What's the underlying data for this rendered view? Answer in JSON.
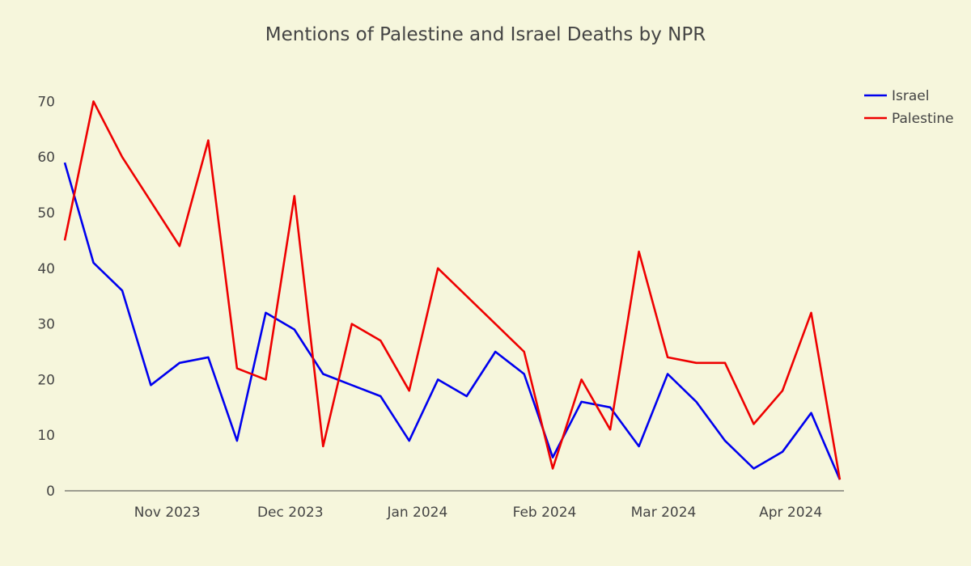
{
  "chart_data": {
    "type": "line",
    "title": "Mentions of Palestine and Israel Deaths by NPR",
    "xlabel": "",
    "ylabel": "",
    "x_axis_type": "date",
    "x_range": [
      "2023-10-07",
      "2024-04-14"
    ],
    "ylim": [
      0,
      74
    ],
    "y_ticks": [
      0,
      10,
      20,
      30,
      40,
      50,
      60,
      70
    ],
    "x_ticks": [
      {
        "date": "2023-11-01",
        "label": "Nov 2023"
      },
      {
        "date": "2023-12-01",
        "label": "Dec 2023"
      },
      {
        "date": "2024-01-01",
        "label": "Jan 2024"
      },
      {
        "date": "2024-02-01",
        "label": "Feb 2024"
      },
      {
        "date": "2024-03-01",
        "label": "Mar 2024"
      },
      {
        "date": "2024-04-01",
        "label": "Apr 2024"
      }
    ],
    "grid": false,
    "legend_position": "top-right",
    "x": [
      "2023-10-07",
      "2023-10-14",
      "2023-10-21",
      "2023-10-28",
      "2023-11-04",
      "2023-11-11",
      "2023-11-18",
      "2023-11-25",
      "2023-12-02",
      "2023-12-09",
      "2023-12-16",
      "2023-12-23",
      "2023-12-30",
      "2024-01-06",
      "2024-01-13",
      "2024-01-20",
      "2024-01-27",
      "2024-02-03",
      "2024-02-10",
      "2024-02-17",
      "2024-02-24",
      "2024-03-02",
      "2024-03-09",
      "2024-03-16",
      "2024-03-23",
      "2024-03-30",
      "2024-04-06",
      "2024-04-13"
    ],
    "series": [
      {
        "name": "Israel",
        "color": "#0000ee",
        "values": [
          59,
          41,
          36,
          19,
          23,
          24,
          9,
          32,
          29,
          21,
          19,
          17,
          9,
          20,
          17,
          25,
          21,
          6,
          16,
          15,
          8,
          21,
          16,
          9,
          4,
          7,
          14,
          2
        ]
      },
      {
        "name": "Palestine",
        "color": "#ee0000",
        "values": [
          45,
          70,
          60,
          52,
          44,
          63,
          22,
          20,
          53,
          8,
          30,
          27,
          18,
          40,
          35,
          30,
          25,
          4,
          20,
          11,
          43,
          24,
          23,
          23,
          12,
          18,
          32,
          2
        ]
      }
    ]
  }
}
